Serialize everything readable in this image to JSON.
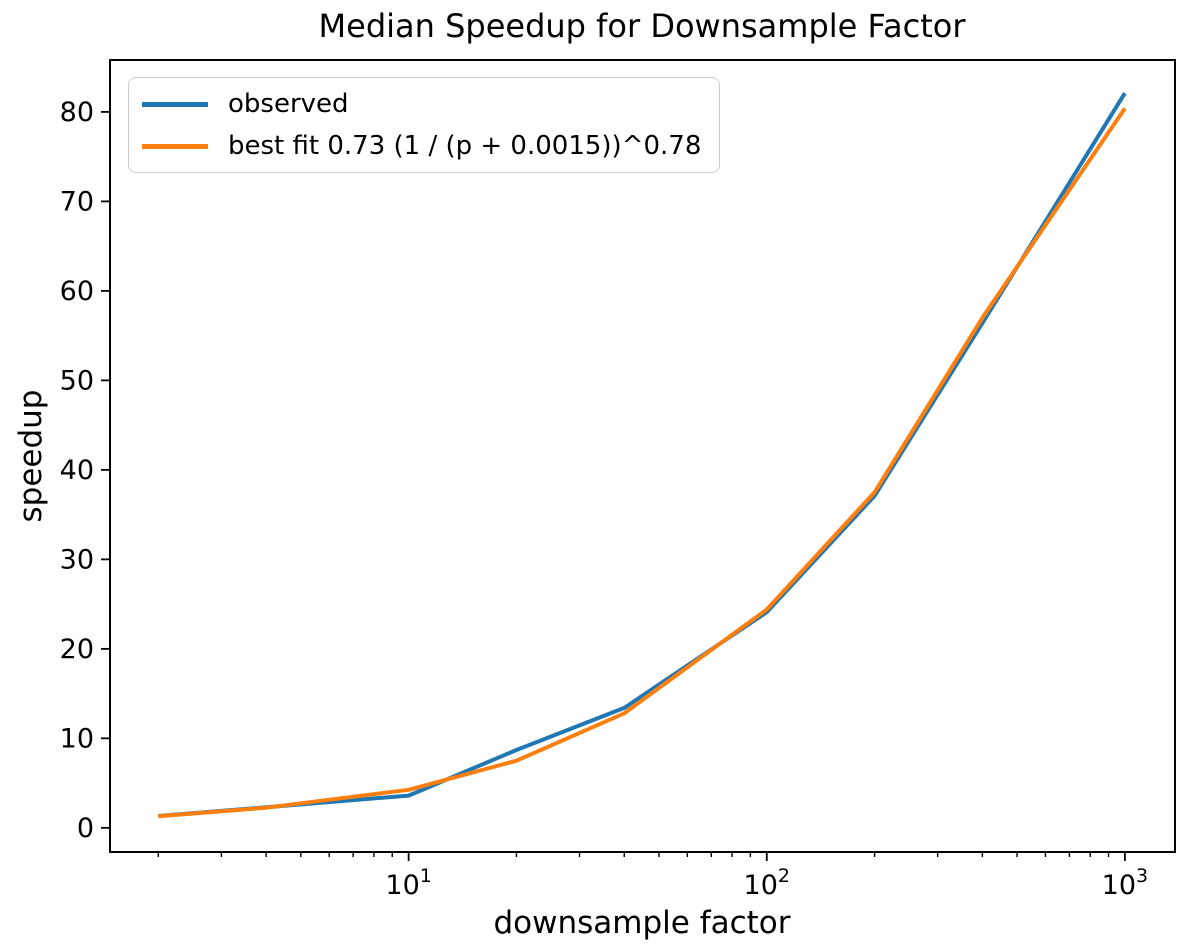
{
  "chart_data": {
    "type": "line",
    "title": "Median Speedup for Downsample Factor",
    "xlabel": "downsample factor",
    "ylabel": "speedup",
    "x_scale": "log",
    "y_scale": "linear",
    "xlim": [
      1.466,
      1380
    ],
    "ylim": [
      -2.7,
      85.8
    ],
    "grid": false,
    "legend_position": "upper left",
    "y_ticks": [
      0,
      10,
      20,
      30,
      40,
      50,
      60,
      70,
      80
    ],
    "x_major_ticks": [
      {
        "value": 10,
        "base": "10",
        "exp": "1"
      },
      {
        "value": 100,
        "base": "10",
        "exp": "2"
      },
      {
        "value": 1000,
        "base": "10",
        "exp": "3"
      }
    ],
    "series": [
      {
        "name": "observed",
        "color": "#1f77b4",
        "x": [
          2,
          4,
          10,
          20,
          40,
          100,
          200,
          400,
          1000
        ],
        "y": [
          1.32,
          2.3,
          3.6,
          8.7,
          13.4,
          24.1,
          37.1,
          56.4,
          82.1
        ]
      },
      {
        "name": "best fit 0.73 (1 / (p + 0.0015))^0.78",
        "color": "#ff7f0e",
        "x": [
          2,
          4,
          10,
          20,
          40,
          100,
          200,
          400,
          1000
        ],
        "y": [
          1.3,
          2.25,
          4.25,
          7.5,
          12.8,
          24.4,
          37.5,
          57.0,
          80.4
        ]
      }
    ]
  },
  "legend": {
    "entries": [
      {
        "label": "observed",
        "color": "#1f77b4"
      },
      {
        "label": "best fit 0.73 (1 / (p + 0.0015))^0.78",
        "color": "#ff7f0e"
      }
    ]
  },
  "colors": {
    "observed_line": "#1f77b4",
    "best_fit_line": "#ff7f0e",
    "axis": "#000000",
    "legend_border": "#cccccc",
    "background": "#ffffff"
  }
}
